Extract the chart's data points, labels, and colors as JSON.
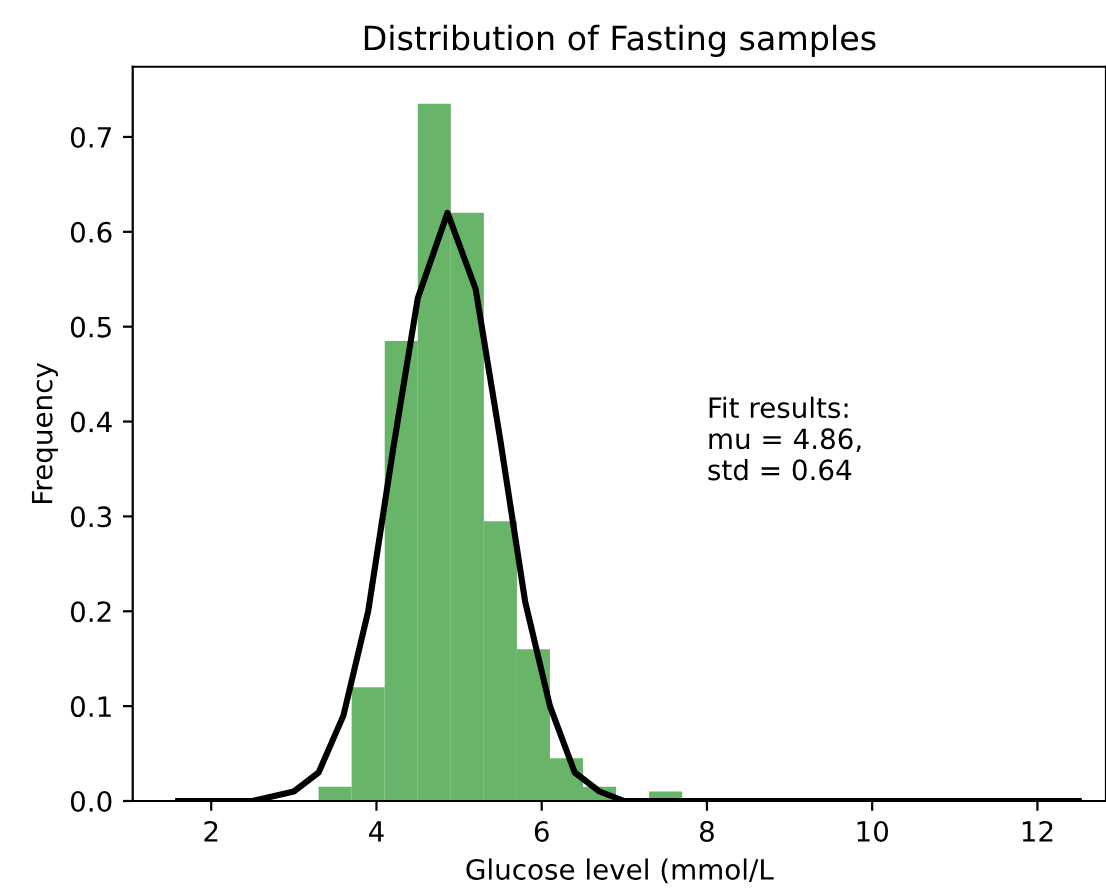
{
  "chart_data": {
    "type": "histogram",
    "title": "Distribution of Fasting samples",
    "xlabel": "Glucose level (mmol/L",
    "ylabel": "Frequency",
    "bins": [
      3.3,
      3.7,
      4.1,
      4.5,
      4.9,
      5.3,
      5.7,
      6.1,
      6.5,
      6.9,
      7.3,
      7.7
    ],
    "values": [
      0.015,
      0.12,
      0.485,
      0.735,
      0.62,
      0.295,
      0.16,
      0.045,
      0.015,
      0.003,
      0.01
    ],
    "color": "#68b468",
    "series": [
      {
        "type": "line",
        "color": "#000000",
        "x": [
          1.6,
          2.5,
          3.0,
          3.3,
          3.6,
          3.9,
          4.2,
          4.5,
          4.86,
          5.2,
          5.5,
          5.8,
          6.1,
          6.4,
          6.7,
          7.0,
          8.0,
          10.0,
          12.5
        ],
        "values": [
          0.0,
          0.0,
          0.01,
          0.03,
          0.09,
          0.2,
          0.37,
          0.53,
          0.62,
          0.54,
          0.38,
          0.21,
          0.1,
          0.03,
          0.01,
          0.0,
          0.0,
          0.0,
          0.0
        ]
      }
    ],
    "annotations": [
      "Fit results:\nmu = 4.86,\nstd = 0.64"
    ],
    "xlim": [
      1.05,
      12.83
    ],
    "ylim": [
      0,
      0.774
    ],
    "xticks": [
      2,
      4,
      6,
      8,
      10,
      12
    ],
    "yticks": [
      {
        "value": 0,
        "label": "0.0"
      },
      0.1,
      0.2,
      0.3,
      0.4,
      0.5,
      0.6,
      0.7
    ],
    "grid": false,
    "legend": false
  }
}
